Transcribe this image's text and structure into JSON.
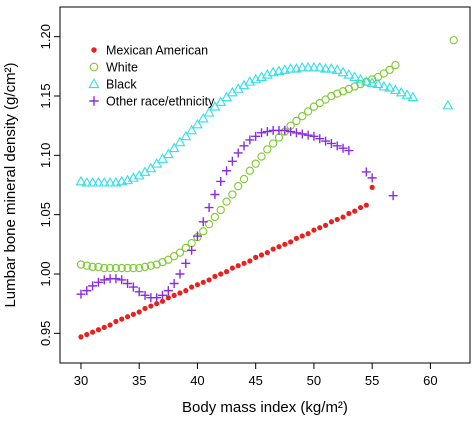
{
  "chart_data": {
    "type": "scatter",
    "xlabel": "Body mass index (kg/m²)",
    "ylabel": "Lumbar bone mineral density (g/cm²)",
    "xlim": [
      28.2,
      63.4
    ],
    "ylim": [
      0.925,
      1.225
    ],
    "xticks": [
      "30",
      "35",
      "40",
      "45",
      "50",
      "55",
      "60"
    ],
    "yticks": [
      "0.95",
      "1.00",
      "1.05",
      "1.10",
      "1.15",
      "1.20"
    ],
    "grid": false,
    "legend_position": "top-left",
    "series": [
      {
        "name": "Mexican American",
        "marker": "filled-circle",
        "color": "#e8201e",
        "points": [
          [
            30.0,
            0.947
          ],
          [
            30.5,
            0.949
          ],
          [
            31.0,
            0.951
          ],
          [
            31.5,
            0.953
          ],
          [
            32.0,
            0.955
          ],
          [
            32.5,
            0.957
          ],
          [
            33.0,
            0.96
          ],
          [
            33.5,
            0.962
          ],
          [
            34.0,
            0.964
          ],
          [
            34.5,
            0.966
          ],
          [
            35.0,
            0.968
          ],
          [
            35.5,
            0.971
          ],
          [
            36.0,
            0.973
          ],
          [
            36.5,
            0.975
          ],
          [
            37.0,
            0.977
          ],
          [
            37.5,
            0.98
          ],
          [
            38.0,
            0.982
          ],
          [
            38.5,
            0.984
          ],
          [
            39.0,
            0.986
          ],
          [
            39.5,
            0.989
          ],
          [
            40.0,
            0.991
          ],
          [
            40.5,
            0.993
          ],
          [
            41.0,
            0.995
          ],
          [
            41.5,
            0.998
          ],
          [
            42.0,
            1.0
          ],
          [
            42.5,
            1.002
          ],
          [
            43.0,
            1.005
          ],
          [
            43.5,
            1.007
          ],
          [
            44.0,
            1.009
          ],
          [
            44.5,
            1.011
          ],
          [
            45.0,
            1.014
          ],
          [
            45.5,
            1.016
          ],
          [
            46.0,
            1.018
          ],
          [
            46.5,
            1.021
          ],
          [
            47.0,
            1.023
          ],
          [
            47.5,
            1.025
          ],
          [
            48.0,
            1.027
          ],
          [
            48.5,
            1.03
          ],
          [
            49.0,
            1.032
          ],
          [
            49.5,
            1.034
          ],
          [
            50.0,
            1.037
          ],
          [
            50.5,
            1.039
          ],
          [
            51.0,
            1.041
          ],
          [
            51.5,
            1.044
          ],
          [
            52.0,
            1.046
          ],
          [
            52.5,
            1.048
          ],
          [
            53.0,
            1.051
          ],
          [
            53.5,
            1.053
          ],
          [
            54.0,
            1.056
          ],
          [
            54.5,
            1.058
          ],
          [
            55.0,
            1.073
          ]
        ]
      },
      {
        "name": "White",
        "marker": "open-circle",
        "color": "#7ec92f",
        "points": [
          [
            30.0,
            1.008
          ],
          [
            30.5,
            1.007
          ],
          [
            31.0,
            1.006
          ],
          [
            31.5,
            1.006
          ],
          [
            32.0,
            1.005
          ],
          [
            32.5,
            1.005
          ],
          [
            33.0,
            1.005
          ],
          [
            33.5,
            1.005
          ],
          [
            34.0,
            1.005
          ],
          [
            34.5,
            1.005
          ],
          [
            35.0,
            1.005
          ],
          [
            35.5,
            1.006
          ],
          [
            36.0,
            1.007
          ],
          [
            36.5,
            1.008
          ],
          [
            37.0,
            1.01
          ],
          [
            37.5,
            1.012
          ],
          [
            38.0,
            1.015
          ],
          [
            38.5,
            1.018
          ],
          [
            39.0,
            1.022
          ],
          [
            39.5,
            1.026
          ],
          [
            40.0,
            1.031
          ],
          [
            40.5,
            1.036
          ],
          [
            41.0,
            1.042
          ],
          [
            41.5,
            1.048
          ],
          [
            42.0,
            1.054
          ],
          [
            42.5,
            1.061
          ],
          [
            43.0,
            1.067
          ],
          [
            43.5,
            1.074
          ],
          [
            44.0,
            1.08
          ],
          [
            44.5,
            1.087
          ],
          [
            45.0,
            1.093
          ],
          [
            45.5,
            1.099
          ],
          [
            46.0,
            1.105
          ],
          [
            46.5,
            1.11
          ],
          [
            47.0,
            1.115
          ],
          [
            47.5,
            1.12
          ],
          [
            48.0,
            1.125
          ],
          [
            48.5,
            1.129
          ],
          [
            49.0,
            1.133
          ],
          [
            49.5,
            1.137
          ],
          [
            50.0,
            1.141
          ],
          [
            50.5,
            1.144
          ],
          [
            51.0,
            1.147
          ],
          [
            51.5,
            1.15
          ],
          [
            52.0,
            1.152
          ],
          [
            52.5,
            1.154
          ],
          [
            53.0,
            1.156
          ],
          [
            53.5,
            1.158
          ],
          [
            54.0,
            1.16
          ],
          [
            54.5,
            1.162
          ],
          [
            55.0,
            1.164
          ],
          [
            55.5,
            1.166
          ],
          [
            56.0,
            1.169
          ],
          [
            56.5,
            1.172
          ],
          [
            57.0,
            1.176
          ],
          [
            62.0,
            1.197
          ]
        ]
      },
      {
        "name": "Black",
        "marker": "open-triangle",
        "color": "#2fe0e8",
        "points": [
          [
            30.0,
            1.078
          ],
          [
            30.5,
            1.077
          ],
          [
            31.0,
            1.077
          ],
          [
            31.5,
            1.077
          ],
          [
            32.0,
            1.077
          ],
          [
            32.5,
            1.077
          ],
          [
            33.0,
            1.077
          ],
          [
            33.5,
            1.078
          ],
          [
            34.0,
            1.079
          ],
          [
            34.5,
            1.081
          ],
          [
            35.0,
            1.083
          ],
          [
            35.5,
            1.086
          ],
          [
            36.0,
            1.089
          ],
          [
            36.5,
            1.093
          ],
          [
            37.0,
            1.097
          ],
          [
            37.5,
            1.101
          ],
          [
            38.0,
            1.106
          ],
          [
            38.5,
            1.111
          ],
          [
            39.0,
            1.116
          ],
          [
            39.5,
            1.121
          ],
          [
            40.0,
            1.126
          ],
          [
            40.5,
            1.131
          ],
          [
            41.0,
            1.136
          ],
          [
            41.5,
            1.141
          ],
          [
            42.0,
            1.145
          ],
          [
            42.5,
            1.149
          ],
          [
            43.0,
            1.153
          ],
          [
            43.5,
            1.156
          ],
          [
            44.0,
            1.159
          ],
          [
            44.5,
            1.162
          ],
          [
            45.0,
            1.164
          ],
          [
            45.5,
            1.166
          ],
          [
            46.0,
            1.168
          ],
          [
            46.5,
            1.17
          ],
          [
            47.0,
            1.171
          ],
          [
            47.5,
            1.172
          ],
          [
            48.0,
            1.173
          ],
          [
            48.5,
            1.173
          ],
          [
            49.0,
            1.174
          ],
          [
            49.5,
            1.174
          ],
          [
            50.0,
            1.174
          ],
          [
            50.5,
            1.174
          ],
          [
            51.0,
            1.173
          ],
          [
            51.5,
            1.173
          ],
          [
            52.0,
            1.172
          ],
          [
            52.5,
            1.17
          ],
          [
            53.0,
            1.168
          ],
          [
            53.5,
            1.166
          ],
          [
            54.0,
            1.164
          ],
          [
            54.5,
            1.162
          ],
          [
            55.0,
            1.161
          ],
          [
            55.5,
            1.16
          ],
          [
            56.0,
            1.158
          ],
          [
            56.5,
            1.157
          ],
          [
            57.0,
            1.155
          ],
          [
            57.5,
            1.153
          ],
          [
            58.0,
            1.151
          ],
          [
            58.5,
            1.149
          ],
          [
            61.5,
            1.142
          ]
        ]
      },
      {
        "name": "Other race/ethnicity",
        "marker": "plus",
        "color": "#8a2be2",
        "points": [
          [
            30.0,
            0.983
          ],
          [
            30.5,
            0.986
          ],
          [
            31.0,
            0.99
          ],
          [
            31.5,
            0.993
          ],
          [
            32.0,
            0.995
          ],
          [
            32.5,
            0.996
          ],
          [
            33.0,
            0.996
          ],
          [
            33.5,
            0.995
          ],
          [
            34.0,
            0.992
          ],
          [
            34.5,
            0.989
          ],
          [
            35.0,
            0.985
          ],
          [
            35.5,
            0.982
          ],
          [
            36.0,
            0.98
          ],
          [
            36.5,
            0.98
          ],
          [
            37.0,
            0.982
          ],
          [
            37.5,
            0.986
          ],
          [
            38.0,
            0.992
          ],
          [
            38.5,
            1.0
          ],
          [
            39.0,
            1.009
          ],
          [
            39.5,
            1.02
          ],
          [
            40.0,
            1.032
          ],
          [
            40.5,
            1.044
          ],
          [
            41.0,
            1.056
          ],
          [
            41.5,
            1.067
          ],
          [
            42.0,
            1.078
          ],
          [
            42.5,
            1.087
          ],
          [
            43.0,
            1.095
          ],
          [
            43.5,
            1.102
          ],
          [
            44.0,
            1.108
          ],
          [
            44.5,
            1.113
          ],
          [
            45.0,
            1.116
          ],
          [
            45.5,
            1.119
          ],
          [
            46.0,
            1.12
          ],
          [
            46.5,
            1.121
          ],
          [
            47.0,
            1.121
          ],
          [
            47.5,
            1.121
          ],
          [
            48.0,
            1.12
          ],
          [
            48.5,
            1.119
          ],
          [
            49.0,
            1.118
          ],
          [
            49.5,
            1.117
          ],
          [
            50.0,
            1.116
          ],
          [
            50.5,
            1.114
          ],
          [
            51.0,
            1.112
          ],
          [
            51.5,
            1.11
          ],
          [
            52.0,
            1.108
          ],
          [
            52.5,
            1.106
          ],
          [
            53.0,
            1.104
          ],
          [
            54.5,
            1.086
          ],
          [
            55.0,
            1.081
          ],
          [
            56.8,
            1.066
          ]
        ]
      }
    ]
  }
}
